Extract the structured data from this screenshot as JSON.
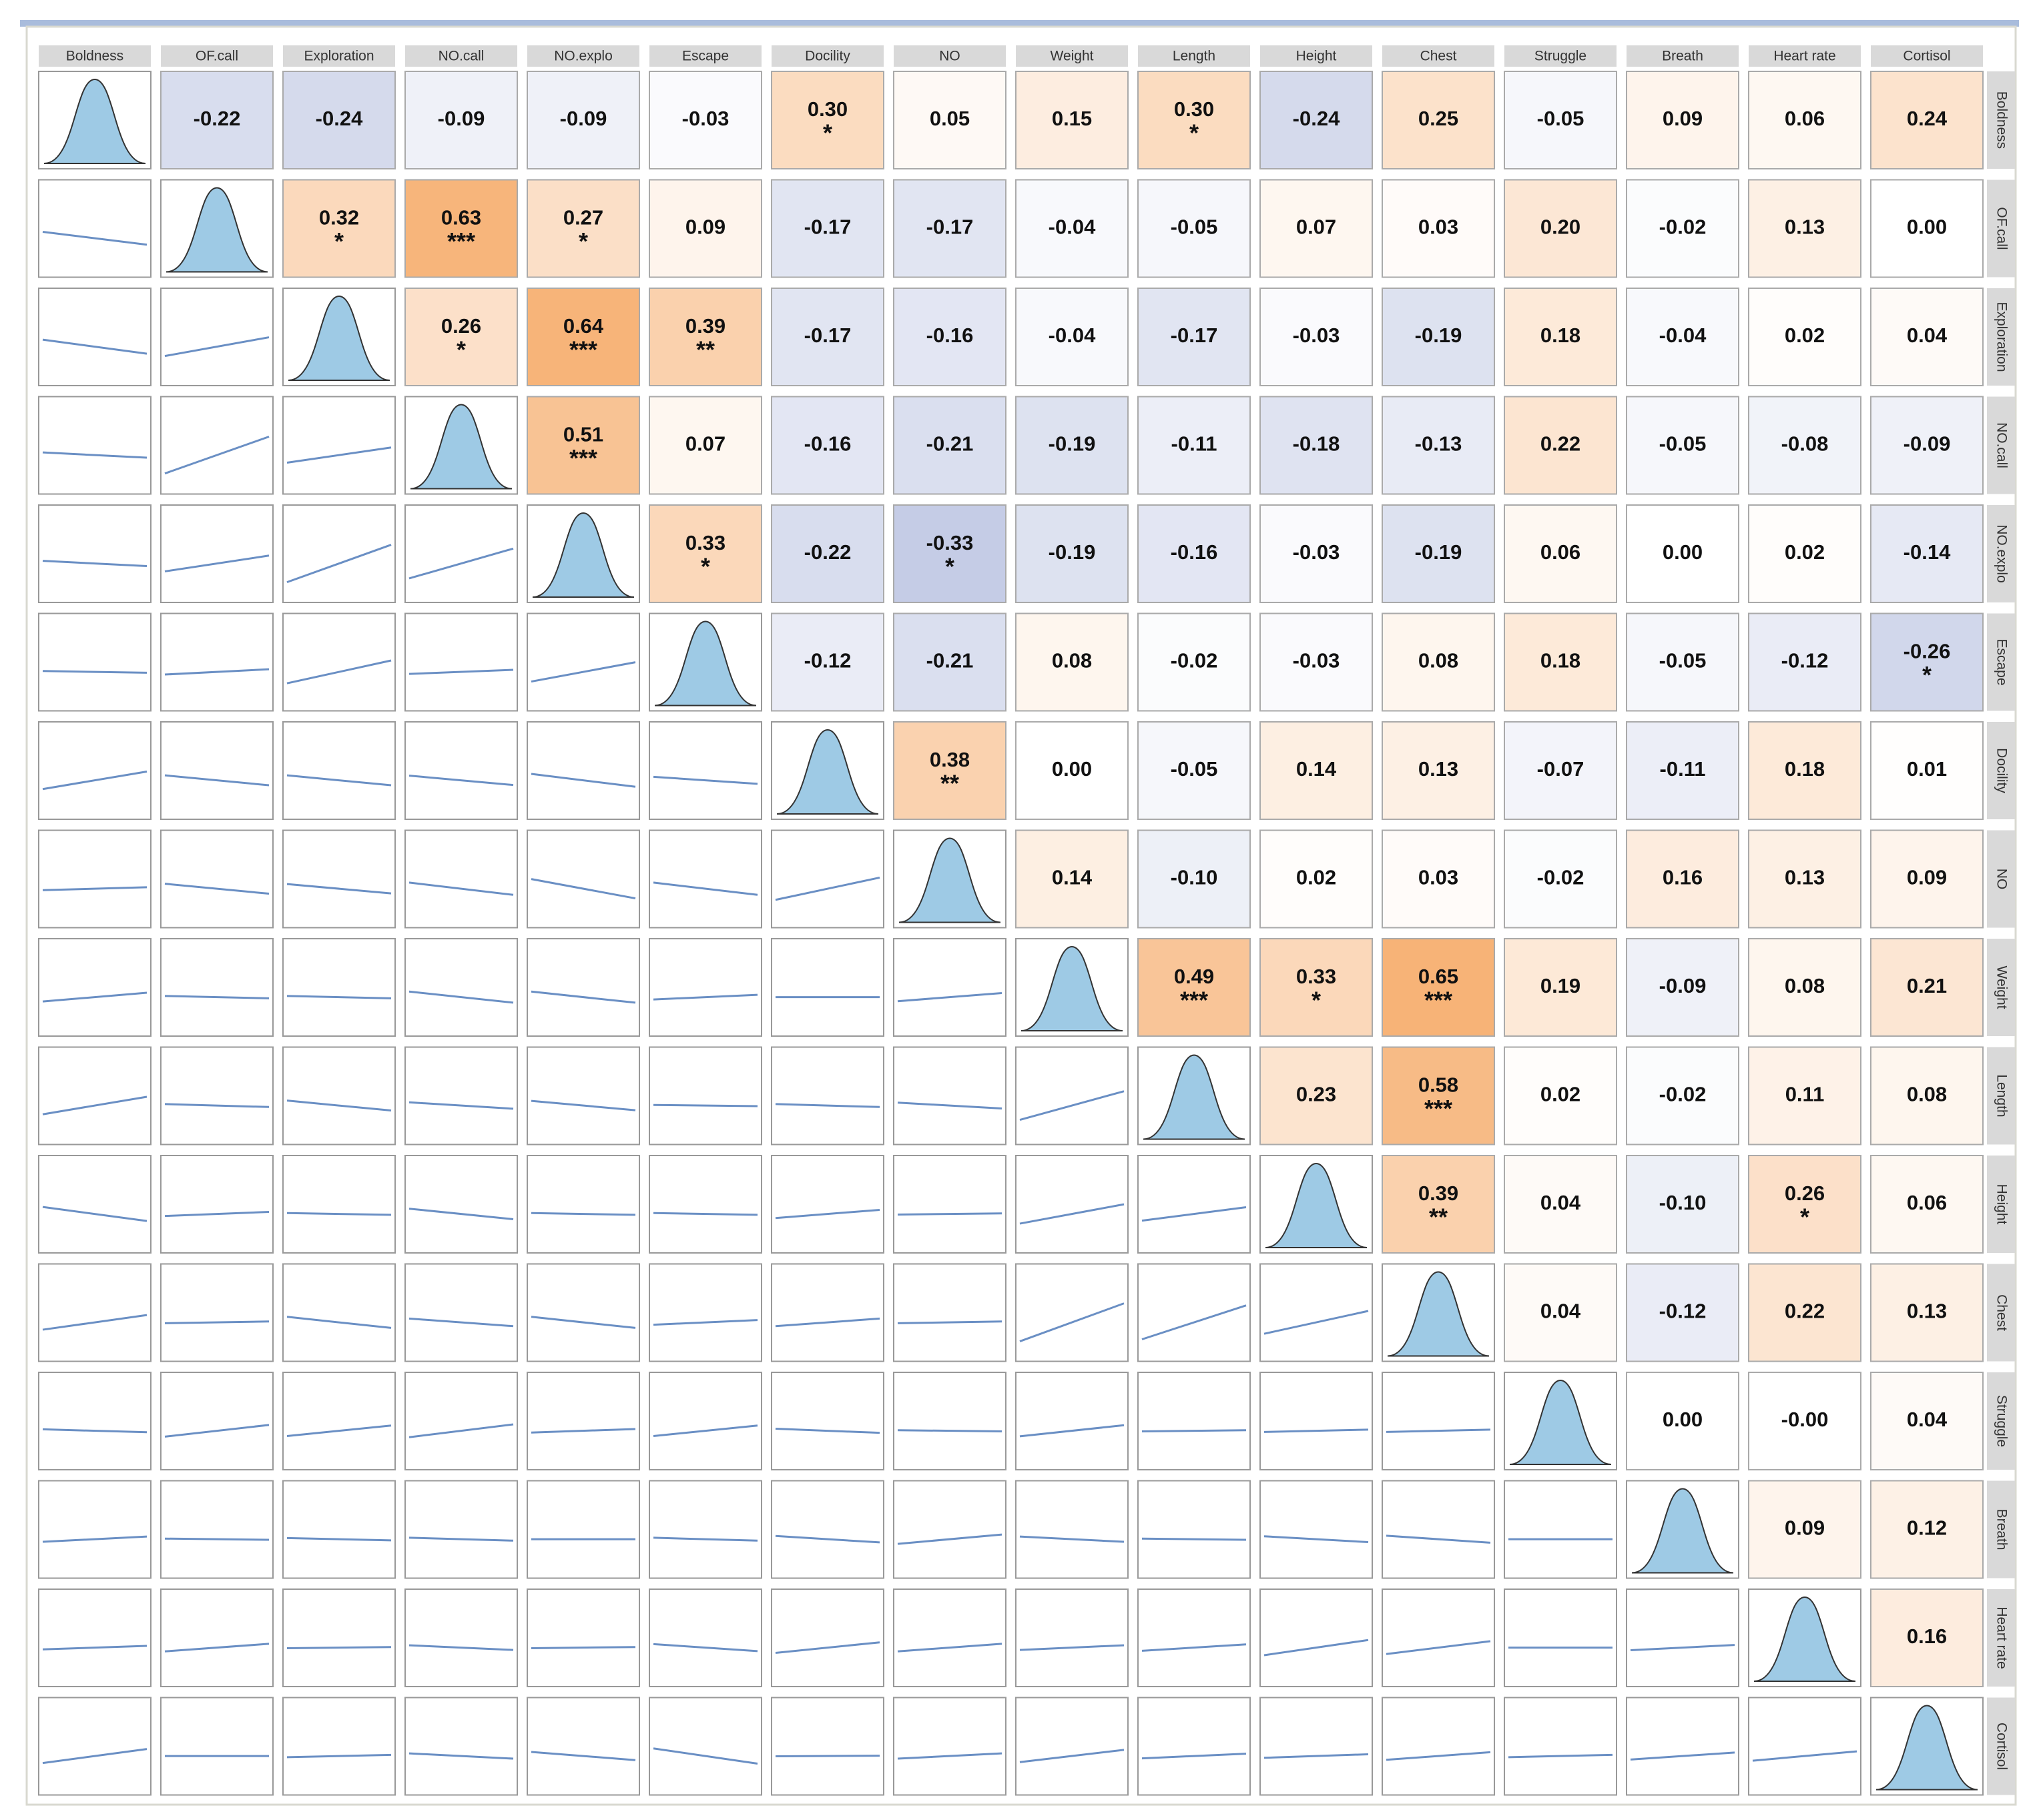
{
  "chart_data": {
    "type": "correlation-matrix",
    "variables": [
      "Boldness",
      "OF.call",
      "Exploration",
      "NO.call",
      "NO.explo",
      "Escape",
      "Docility",
      "NO",
      "Weight",
      "Length",
      "Height",
      "Chest",
      "Struggle",
      "Breath",
      "Heart rate",
      "Cortisol"
    ],
    "correlations": [
      [
        -0.22,
        -0.24,
        -0.09,
        -0.09,
        -0.03,
        0.3,
        0.05,
        0.15,
        0.3,
        -0.24,
        0.25,
        -0.05,
        0.09,
        0.06,
        0.24
      ],
      [
        0.32,
        0.63,
        0.27,
        0.09,
        -0.17,
        -0.17,
        -0.04,
        -0.05,
        0.07,
        0.03,
        0.2,
        -0.02,
        0.13,
        0.0
      ],
      [
        0.26,
        0.64,
        0.39,
        -0.17,
        -0.16,
        -0.04,
        -0.17,
        -0.03,
        -0.19,
        0.18,
        -0.04,
        0.02,
        0.04
      ],
      [
        0.51,
        0.07,
        -0.16,
        -0.21,
        -0.19,
        -0.11,
        -0.18,
        -0.13,
        0.22,
        -0.05,
        -0.08,
        -0.09
      ],
      [
        0.33,
        -0.22,
        -0.33,
        -0.19,
        -0.16,
        -0.03,
        -0.19,
        0.06,
        0.0,
        0.02,
        -0.14
      ],
      [
        -0.12,
        -0.21,
        0.08,
        -0.02,
        -0.03,
        0.08,
        0.18,
        -0.05,
        -0.12,
        -0.26
      ],
      [
        0.38,
        0.0,
        -0.05,
        0.14,
        0.13,
        -0.07,
        -0.11,
        0.18,
        0.01
      ],
      [
        0.14,
        -0.1,
        0.02,
        0.03,
        -0.02,
        0.16,
        0.13,
        0.09
      ],
      [
        0.49,
        0.33,
        0.65,
        0.19,
        -0.09,
        0.08,
        0.21
      ],
      [
        0.23,
        0.58,
        0.02,
        -0.02,
        0.11,
        0.08
      ],
      [
        0.39,
        0.04,
        -0.1,
        0.26,
        0.06
      ],
      [
        0.04,
        -0.12,
        0.22,
        0.13
      ],
      [
        0.0,
        0.0,
        0.04
      ],
      [
        0.09,
        0.12
      ],
      [
        0.16
      ]
    ],
    "value_labels": [
      [
        "-0.22",
        "-0.24",
        "-0.09",
        "-0.09",
        "-0.03",
        "0.30",
        "0.05",
        "0.15",
        "0.30",
        "-0.24",
        "0.25",
        "-0.05",
        "0.09",
        "0.06",
        "0.24"
      ],
      [
        "0.32",
        "0.63",
        "0.27",
        "0.09",
        "-0.17",
        "-0.17",
        "-0.04",
        "-0.05",
        "0.07",
        "0.03",
        "0.20",
        "-0.02",
        "0.13",
        "0.00"
      ],
      [
        "0.26",
        "0.64",
        "0.39",
        "-0.17",
        "-0.16",
        "-0.04",
        "-0.17",
        "-0.03",
        "-0.19",
        "0.18",
        "-0.04",
        "0.02",
        "0.04"
      ],
      [
        "0.51",
        "0.07",
        "-0.16",
        "-0.21",
        "-0.19",
        "-0.11",
        "-0.18",
        "-0.13",
        "0.22",
        "-0.05",
        "-0.08",
        "-0.09"
      ],
      [
        "0.33",
        "-0.22",
        "-0.33",
        "-0.19",
        "-0.16",
        "-0.03",
        "-0.19",
        "0.06",
        "0.00",
        "0.02",
        "-0.14"
      ],
      [
        "-0.12",
        "-0.21",
        "0.08",
        "-0.02",
        "-0.03",
        "0.08",
        "0.18",
        "-0.05",
        "-0.12",
        "-0.26"
      ],
      [
        "0.38",
        "0.00",
        "-0.05",
        "0.14",
        "0.13",
        "-0.07",
        "-0.11",
        "0.18",
        "0.01"
      ],
      [
        "0.14",
        "-0.10",
        "0.02",
        "0.03",
        "-0.02",
        "0.16",
        "0.13",
        "0.09"
      ],
      [
        "0.49",
        "0.33",
        "0.65",
        "0.19",
        "-0.09",
        "0.08",
        "0.21"
      ],
      [
        "0.23",
        "0.58",
        "0.02",
        "-0.02",
        "0.11",
        "0.08"
      ],
      [
        "0.39",
        "0.04",
        "-0.10",
        "0.26",
        "0.06"
      ],
      [
        "0.04",
        "-0.12",
        "0.22",
        "0.13"
      ],
      [
        "0.00",
        "-0.00",
        "0.04"
      ],
      [
        "0.09",
        "0.12"
      ],
      [
        "0.16"
      ]
    ],
    "significance": [
      [
        null,
        null,
        null,
        null,
        null,
        "*",
        null,
        null,
        "*",
        null,
        null,
        null,
        null,
        null,
        null
      ],
      [
        "*",
        "***",
        "*",
        null,
        null,
        null,
        null,
        null,
        null,
        null,
        null,
        null,
        null,
        null
      ],
      [
        "*",
        "***",
        "**",
        null,
        null,
        null,
        null,
        null,
        null,
        null,
        null,
        null,
        null
      ],
      [
        "***",
        null,
        null,
        null,
        null,
        null,
        null,
        null,
        null,
        null,
        null,
        null
      ],
      [
        "*",
        null,
        "*",
        null,
        null,
        null,
        null,
        null,
        null,
        null,
        null
      ],
      [
        null,
        null,
        null,
        null,
        null,
        null,
        null,
        null,
        null,
        "*"
      ],
      [
        "**",
        null,
        null,
        null,
        null,
        null,
        null,
        null,
        null
      ],
      [
        null,
        null,
        null,
        null,
        null,
        null,
        null,
        null
      ],
      [
        "***",
        "*",
        "***",
        null,
        null,
        null,
        null
      ],
      [
        null,
        "***",
        null,
        null,
        null,
        null
      ],
      [
        "**",
        null,
        null,
        "*",
        null
      ],
      [
        null,
        null,
        null,
        null
      ],
      [
        null,
        null,
        null
      ],
      [
        null,
        null
      ],
      [
        null
      ]
    ],
    "positive_color": "#f5a55f",
    "negative_color": "#7889c4",
    "line_color": "#6a8fc4",
    "density_color": "#9ecae5"
  }
}
